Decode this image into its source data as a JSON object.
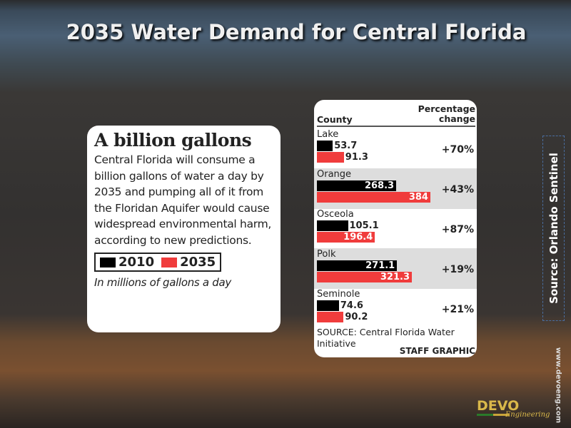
{
  "slide": {
    "title": "2035 Water Demand for Central Florida",
    "side_source": "Source: Orlando Sentinel",
    "website": "www.devoeng.com",
    "logo_text": "DEVO",
    "logo_sub": "Engineering"
  },
  "card": {
    "heading": "A billion gallons",
    "body": "Central Florida will consume a billion gallons of water a day by 2035 and pumping all of it from the Floridan Aquifer would cause widespread environmental harm, according to new predictions.",
    "note": "In millions of gallons a day"
  },
  "chart_data": {
    "type": "bar",
    "orientation": "horizontal",
    "categories": [
      "Lake",
      "Orange",
      "Osceola",
      "Polk",
      "Seminole"
    ],
    "series": [
      {
        "name": "2010",
        "color": "#000000",
        "values": [
          53.7,
          268.3,
          105.1,
          271.1,
          74.6
        ]
      },
      {
        "name": "2035",
        "color": "#f03c3c",
        "values": [
          91.3,
          384,
          196.4,
          321.3,
          90.2
        ]
      }
    ],
    "value_labels": [
      [
        "53.7",
        "268.3",
        "105.1",
        "271.1",
        "74.6"
      ],
      [
        "91.3",
        "384",
        "196.4",
        "321.3",
        "90.2"
      ]
    ],
    "percentage_change": [
      "+70%",
      "+43%",
      "+87%",
      "+19%",
      "+21%"
    ],
    "col_county": "County",
    "col_pct": "Percentage change",
    "source": "SOURCE: Central Florida Water Initiative",
    "credit": "STAFF GRAPHIC",
    "unit": "In millions of gallons a day"
  }
}
